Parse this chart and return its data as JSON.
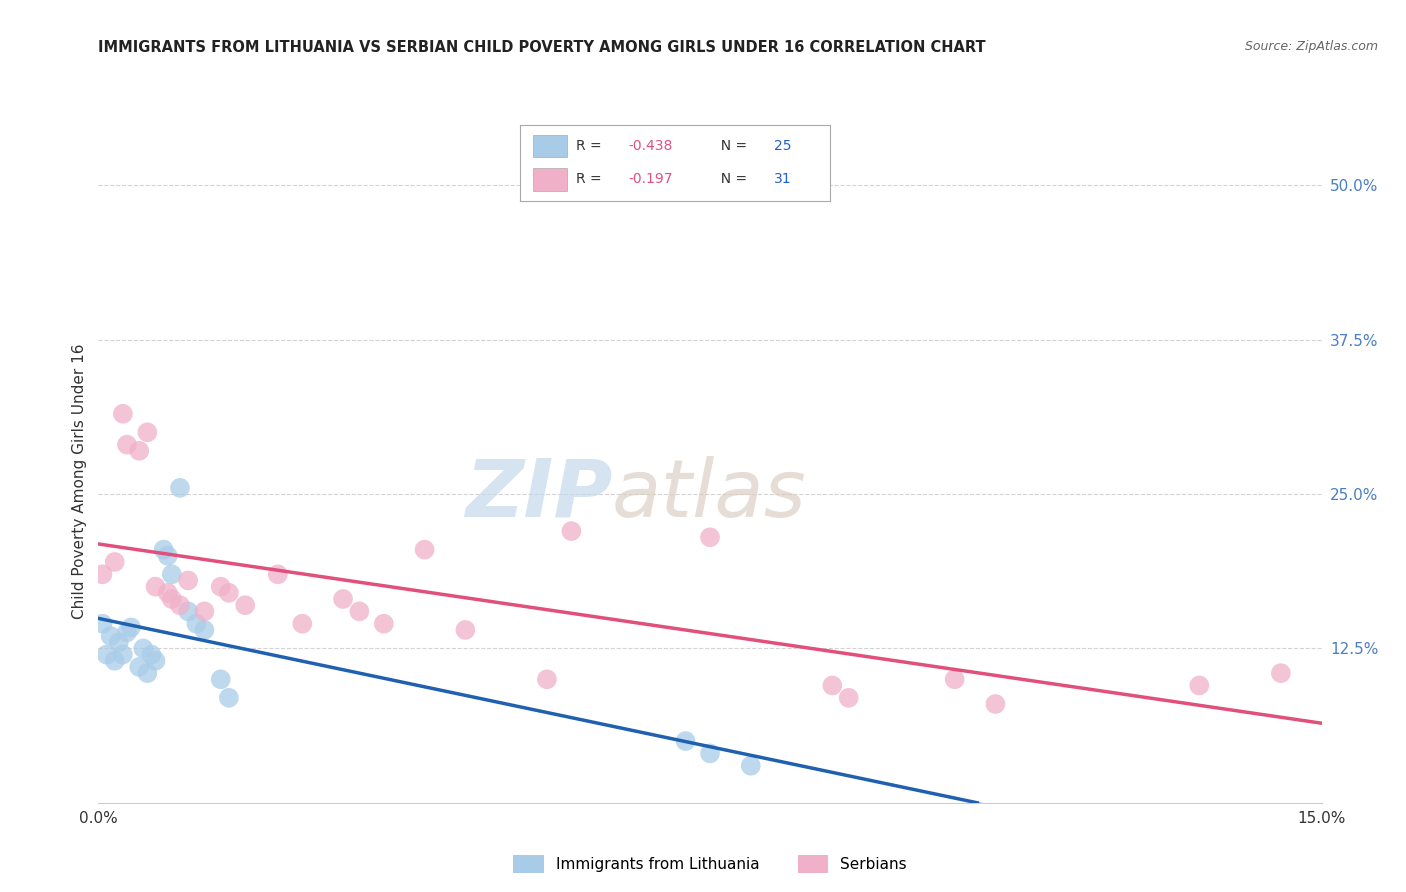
{
  "title": "IMMIGRANTS FROM LITHUANIA VS SERBIAN CHILD POVERTY AMONG GIRLS UNDER 16 CORRELATION CHART",
  "source": "Source: ZipAtlas.com",
  "ylabel": "Child Poverty Among Girls Under 16",
  "xlim": [
    0.0,
    15.0
  ],
  "ylim": [
    0.0,
    52.0
  ],
  "background_color": "#ffffff",
  "grid_color": "#c8c8c8",
  "series": [
    {
      "name": "Immigrants from Lithuania",
      "R": -0.438,
      "N": 25,
      "color": "#a8cce8",
      "line_color": "#2060b0",
      "points_x": [
        0.05,
        0.1,
        0.15,
        0.2,
        0.25,
        0.3,
        0.35,
        0.4,
        0.5,
        0.55,
        0.6,
        0.65,
        0.7,
        0.8,
        0.85,
        0.9,
        1.0,
        1.1,
        1.2,
        1.3,
        1.5,
        1.6,
        7.2,
        7.5,
        8.0
      ],
      "points_y": [
        14.5,
        12.0,
        13.5,
        11.5,
        13.0,
        12.0,
        13.8,
        14.2,
        11.0,
        12.5,
        10.5,
        12.0,
        11.5,
        20.5,
        20.0,
        18.5,
        25.5,
        15.5,
        14.5,
        14.0,
        10.0,
        8.5,
        5.0,
        4.0,
        3.0
      ]
    },
    {
      "name": "Serbians",
      "R": -0.197,
      "N": 31,
      "color": "#f0b0c8",
      "line_color": "#e0507a",
      "points_x": [
        0.05,
        0.2,
        0.3,
        0.35,
        0.5,
        0.6,
        0.7,
        0.85,
        0.9,
        1.0,
        1.1,
        1.3,
        1.5,
        1.6,
        1.8,
        2.2,
        2.5,
        3.0,
        3.2,
        3.5,
        4.0,
        4.5,
        5.5,
        5.8,
        7.5,
        9.0,
        9.2,
        10.5,
        11.0,
        13.5,
        14.5
      ],
      "points_y": [
        18.5,
        19.5,
        31.5,
        29.0,
        28.5,
        30.0,
        17.5,
        17.0,
        16.5,
        16.0,
        18.0,
        15.5,
        17.5,
        17.0,
        16.0,
        18.5,
        14.5,
        16.5,
        15.5,
        14.5,
        20.5,
        14.0,
        10.0,
        22.0,
        21.5,
        9.5,
        8.5,
        10.0,
        8.0,
        9.5,
        10.5
      ]
    }
  ],
  "legend_top": [
    {
      "label": "R = -0.438   N = 25",
      "color": "#a8cce8",
      "R_color": "#e05080",
      "N_color": "#2060cc"
    },
    {
      "label": "R =  -0.197   N = 31",
      "color": "#f0b0c8",
      "R_color": "#e05080",
      "N_color": "#2060cc"
    }
  ],
  "legend_bottom": [
    {
      "label": "Immigrants from Lithuania",
      "color": "#a8cce8"
    },
    {
      "label": "Serbians",
      "color": "#f0b0c8"
    }
  ],
  "yticks": [
    12.5,
    25.0,
    37.5,
    50.0
  ],
  "xticks": [
    0.0,
    15.0
  ],
  "ytick_color": "#4a7fc4",
  "xtick_color": "#333333",
  "watermark_zip_color": "#c5d8ec",
  "watermark_atlas_color": "#d8ccc0"
}
